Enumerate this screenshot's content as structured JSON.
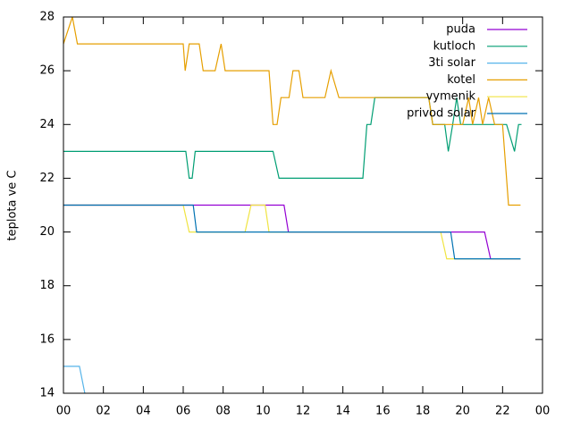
{
  "chart_data": {
    "type": "line",
    "ylabel": "teplota ve C",
    "xlim": [
      0,
      24
    ],
    "ylim": [
      14,
      28
    ],
    "xticks": [
      {
        "value": 0,
        "label": "00"
      },
      {
        "value": 2,
        "label": "02"
      },
      {
        "value": 4,
        "label": "04"
      },
      {
        "value": 6,
        "label": "06"
      },
      {
        "value": 8,
        "label": "08"
      },
      10,
      12,
      14,
      16,
      18,
      20,
      22,
      {
        "value": 24,
        "label": "00"
      }
    ],
    "yticks": [
      14,
      16,
      18,
      20,
      22,
      24,
      26,
      28
    ],
    "legend": "top-right",
    "grid": false,
    "series": [
      {
        "name": "puda",
        "color": "#9400d3",
        "x": [
          0,
          11.05,
          11.27,
          21.1,
          21.4,
          22.9
        ],
        "values": [
          21,
          21,
          20,
          20,
          19,
          19
        ]
      },
      {
        "name": "kutloch",
        "color": "#009e73",
        "x": [
          0,
          6.13,
          6.3,
          6.45,
          6.6,
          10.5,
          10.8,
          15.0,
          15.2,
          15.4,
          15.6,
          18.3,
          18.5,
          19.1,
          19.28,
          19.5,
          19.7,
          19.9,
          22.2,
          22.6,
          22.8,
          22.95
        ],
        "values": [
          23,
          23,
          22,
          22,
          23,
          23,
          22,
          22,
          24,
          24,
          25,
          25,
          24,
          24,
          23,
          24,
          25,
          24,
          24,
          23,
          24,
          24
        ]
      },
      {
        "name": "3ti solar",
        "color": "#56b4e9",
        "x": [
          0,
          0.8,
          1.07
        ],
        "values": [
          15,
          15,
          14
        ]
      },
      {
        "name": "kotel",
        "color": "#e69f00",
        "x": [
          0,
          0.45,
          0.7,
          6.0,
          6.1,
          6.3,
          6.8,
          7.0,
          7.6,
          7.9,
          8.1,
          10.3,
          10.5,
          10.7,
          10.9,
          11.3,
          11.5,
          11.8,
          12.0,
          13.1,
          13.4,
          13.8,
          18.3,
          18.5,
          20.0,
          20.3,
          20.5,
          20.8,
          21.0,
          21.3,
          21.6,
          22.0,
          22.3,
          22.9
        ],
        "values": [
          27,
          28,
          27,
          27,
          26,
          27,
          27,
          26,
          26,
          27,
          26,
          26,
          24,
          24,
          25,
          25,
          26,
          26,
          25,
          25,
          26,
          25,
          25,
          24,
          24,
          25,
          24,
          25,
          24,
          25,
          24,
          24,
          21,
          21
        ]
      },
      {
        "name": "vymenik",
        "color": "#f0e442",
        "x": [
          0,
          6.0,
          6.3,
          9.1,
          9.4,
          10.1,
          10.3,
          18.9,
          19.2,
          22.9
        ],
        "values": [
          21,
          21,
          20,
          20,
          21,
          21,
          20,
          20,
          19,
          19
        ]
      },
      {
        "name": "privod solar",
        "color": "#0072b2",
        "x": [
          0,
          6.5,
          6.67,
          19.4,
          19.6,
          22.9
        ],
        "values": [
          21,
          21,
          20,
          20,
          19,
          19
        ]
      }
    ]
  }
}
